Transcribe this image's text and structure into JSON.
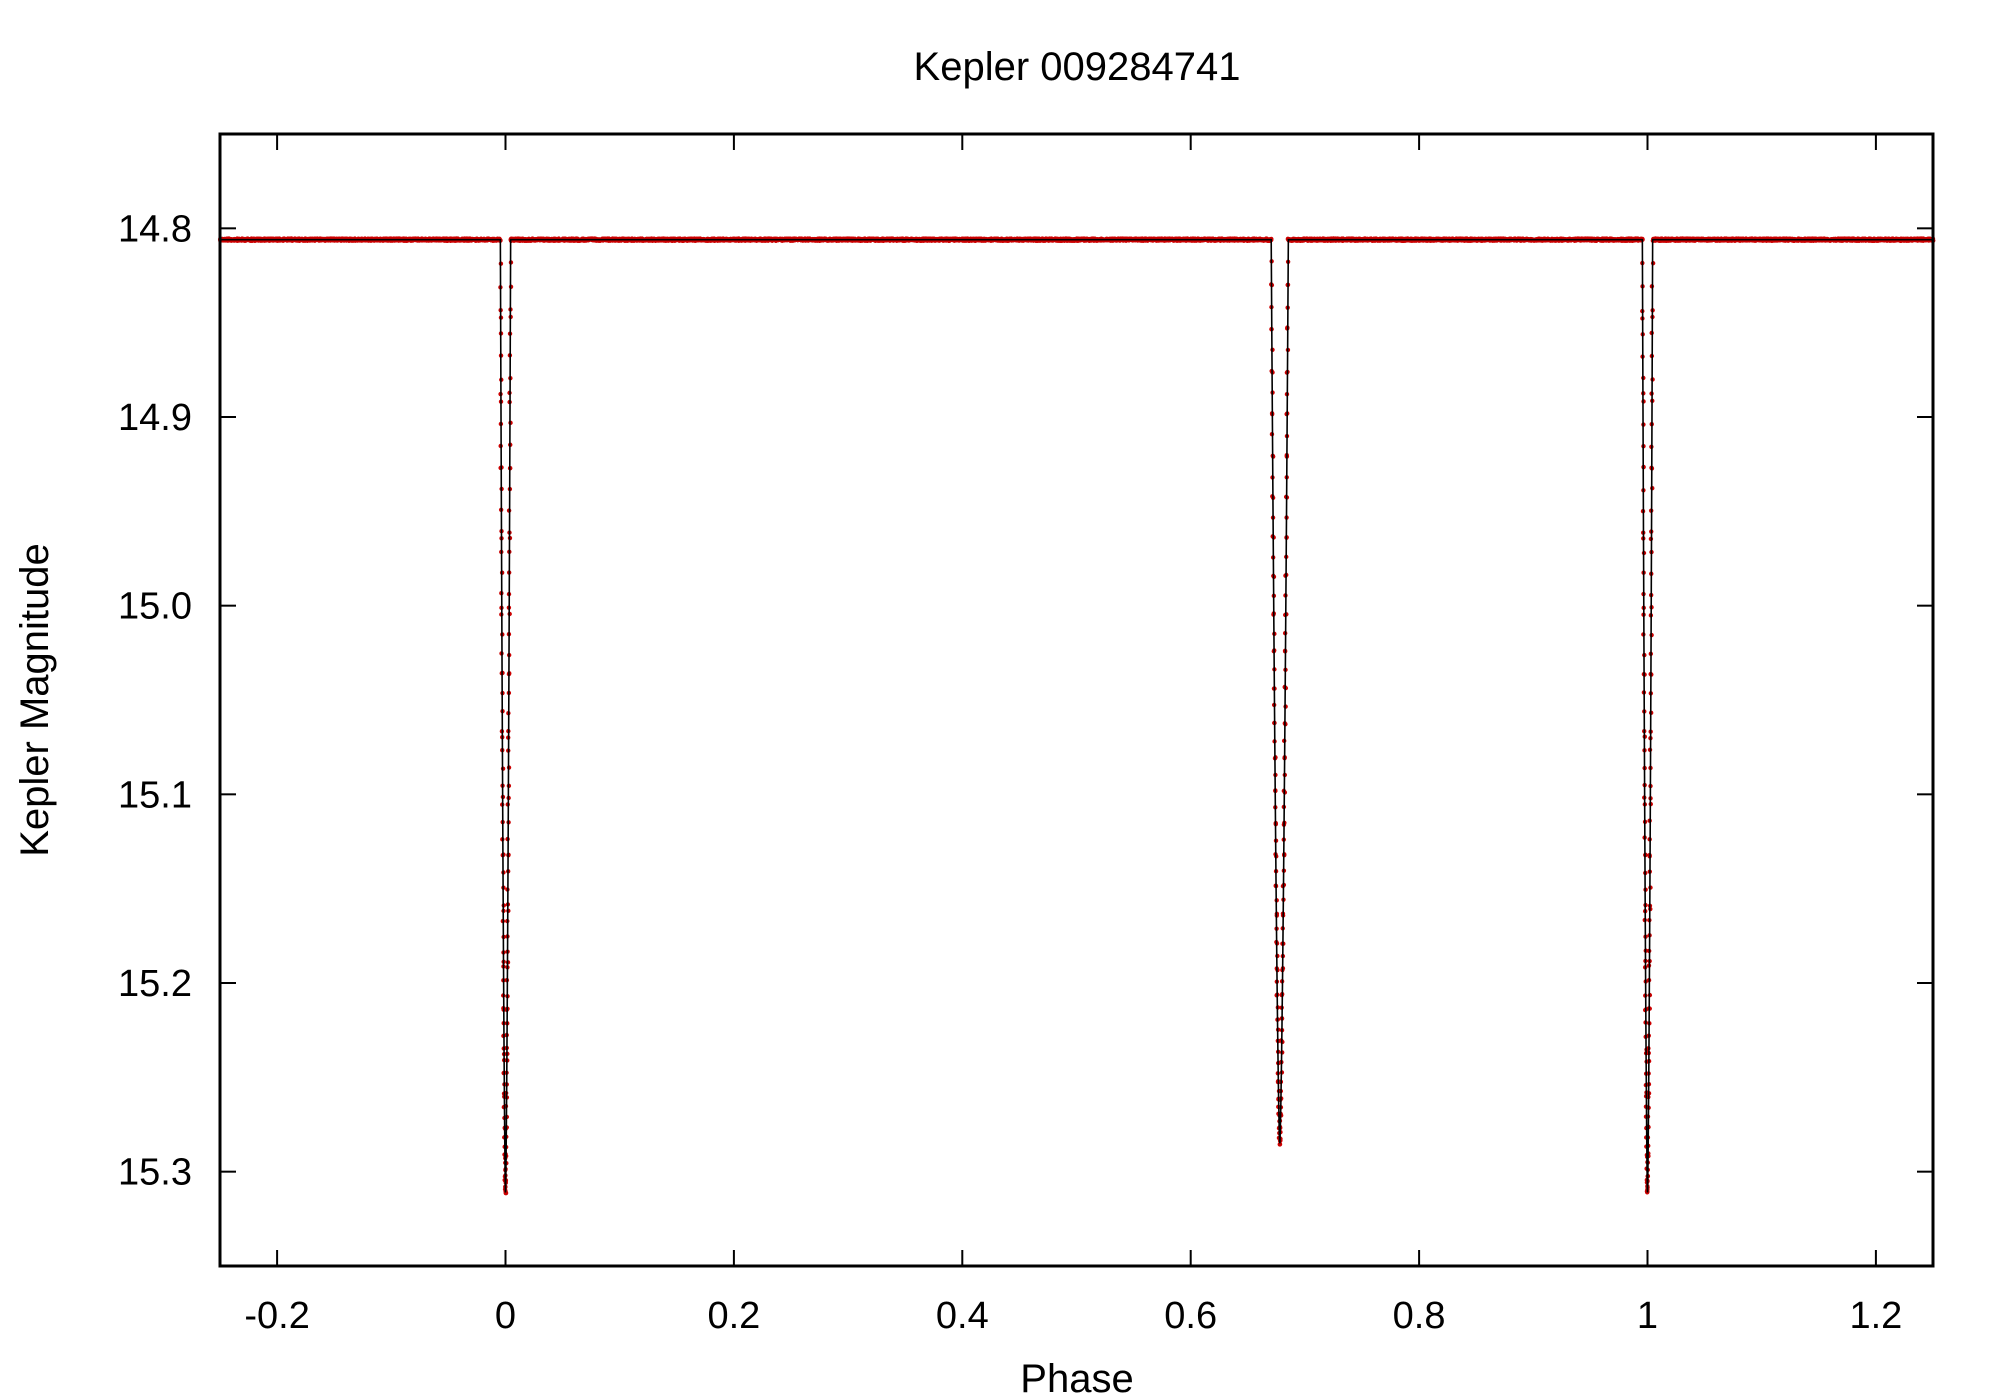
{
  "chart_data": {
    "type": "line",
    "title": "Kepler 009284741",
    "xlabel": "Phase",
    "ylabel": "Kepler Magnitude",
    "xlim": [
      -0.25,
      1.25
    ],
    "ylim": [
      14.75,
      15.35
    ],
    "y_inverted": true,
    "grid": false,
    "legend": "none",
    "x_ticks": [
      {
        "value": -0.2,
        "label": "-0.2"
      },
      {
        "value": 0,
        "label": "0"
      },
      {
        "value": 0.2,
        "label": "0.2"
      },
      {
        "value": 0.4,
        "label": "0.4"
      },
      {
        "value": 0.6,
        "label": "0.6"
      },
      {
        "value": 0.8,
        "label": "0.8"
      },
      {
        "value": 1,
        "label": "1"
      },
      {
        "value": 1.2,
        "label": "1.2"
      }
    ],
    "y_ticks": [
      {
        "value": 14.8,
        "label": "14.8"
      },
      {
        "value": 14.9,
        "label": "14.9"
      },
      {
        "value": 15.0,
        "label": "15.0"
      },
      {
        "value": 15.1,
        "label": "15.1"
      },
      {
        "value": 15.2,
        "label": "15.2"
      },
      {
        "value": 15.3,
        "label": "15.3"
      }
    ],
    "baseline_magnitude": 14.806,
    "eclipses": [
      {
        "center": 0.0,
        "min_magnitude": 15.311,
        "half_width": 0.0045
      },
      {
        "center": 0.678,
        "min_magnitude": 15.285,
        "half_width": 0.0075
      },
      {
        "center": 1.0,
        "min_magnitude": 15.311,
        "half_width": 0.0045
      }
    ],
    "colors": {
      "points": "#cc0000",
      "line": "#000000",
      "axes": "#000000"
    }
  }
}
